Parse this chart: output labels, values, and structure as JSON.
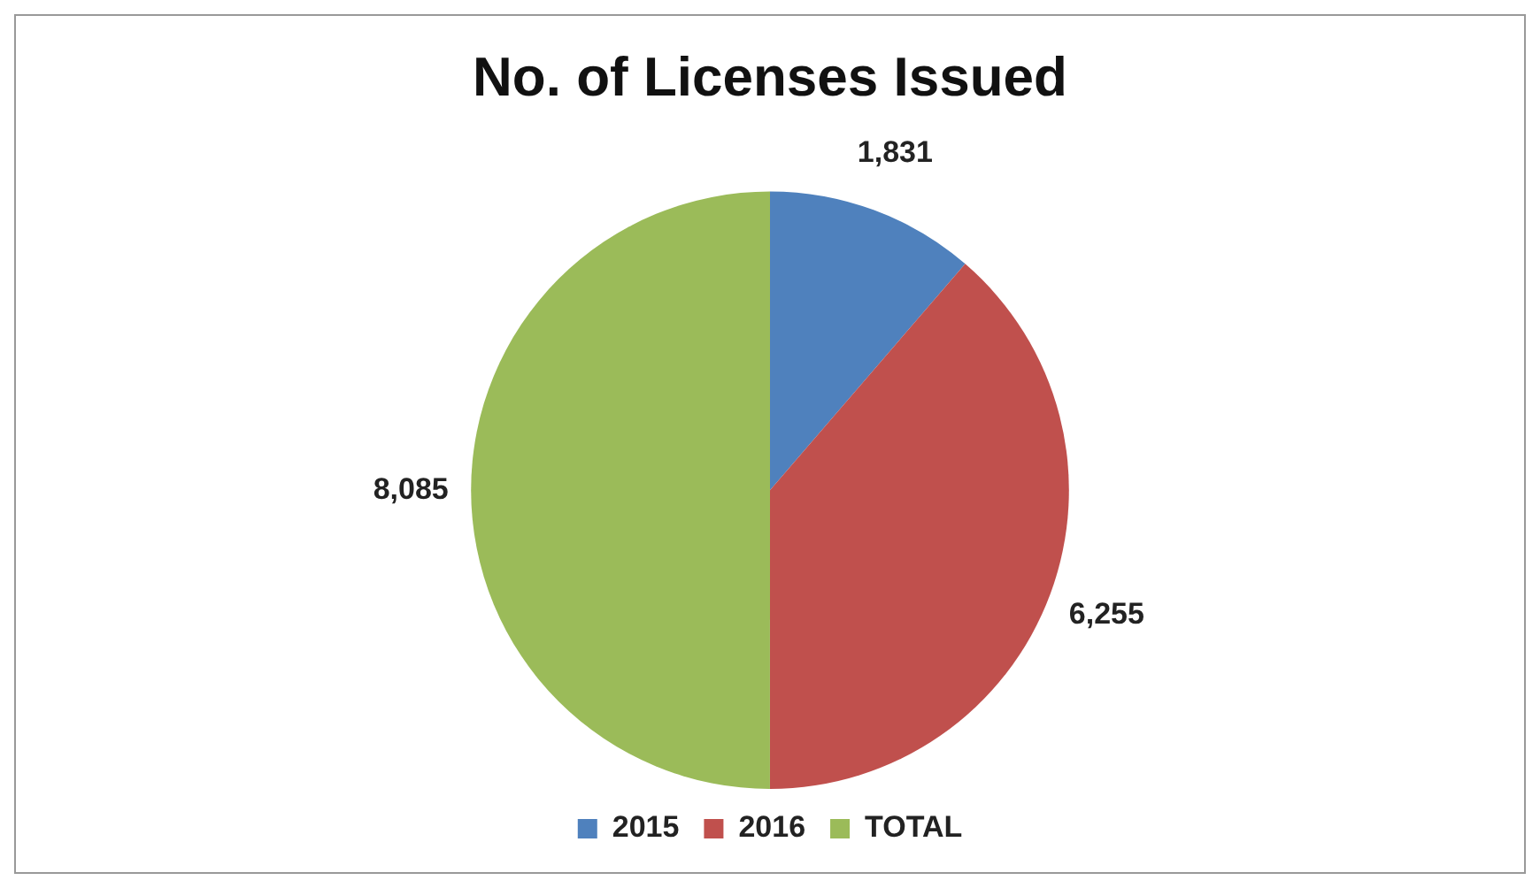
{
  "chart_data": {
    "type": "pie",
    "title": "No. of Licenses Issued",
    "categories": [
      "2015",
      "2016",
      "TOTAL"
    ],
    "values": [
      1831,
      6255,
      8085
    ],
    "colors": [
      "#4f81bd",
      "#c0504d",
      "#9bbb59"
    ],
    "value_labels": [
      "1,831",
      "6,255",
      "8,085"
    ],
    "legend": "bottom"
  }
}
